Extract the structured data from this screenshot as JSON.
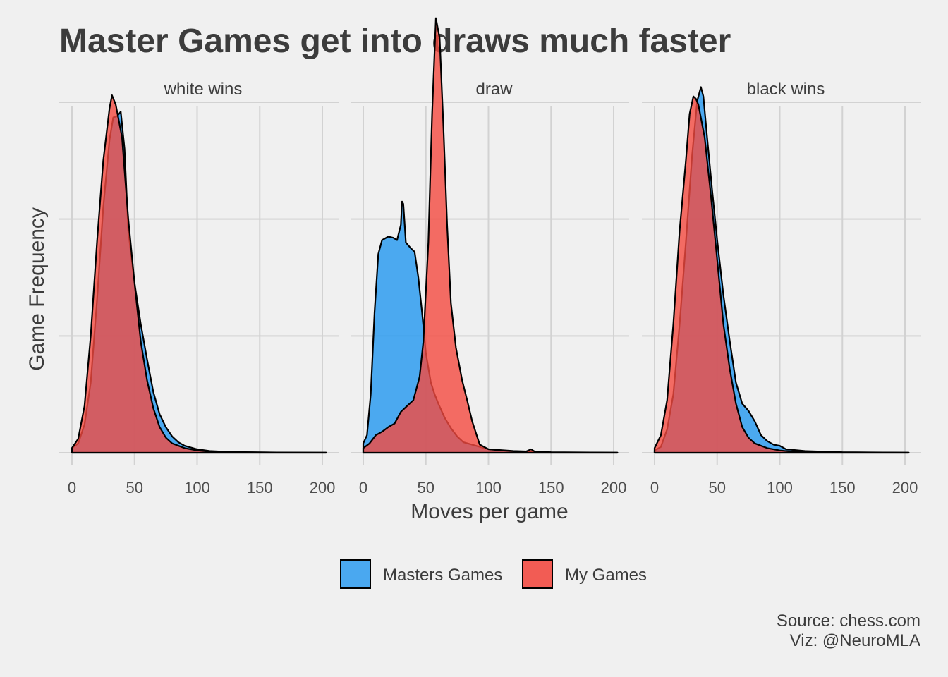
{
  "chart_data": {
    "type": "area",
    "title": "Master Games get into draws much faster",
    "xlabel": "Moves per game",
    "ylabel": "Game Frequency",
    "xlim": [
      0,
      200
    ],
    "ylim": [
      0,
      0.03
    ],
    "x_ticks": [
      "0",
      "50",
      "100",
      "150",
      "200"
    ],
    "legend": [
      {
        "name": "Masters Games",
        "color": "#4aa8f0"
      },
      {
        "name": "My Games",
        "color": "#f25c54"
      }
    ],
    "caption": [
      "Source: chess.com",
      "Viz: @NeuroMLA"
    ],
    "facets": [
      {
        "label": "white wins",
        "series": [
          {
            "name": "Masters Games",
            "points": [
              [
                0,
                0.0004
              ],
              [
                5,
                0.0008
              ],
              [
                10,
                0.0024
              ],
              [
                15,
                0.006
              ],
              [
                20,
                0.013
              ],
              [
                25,
                0.021
              ],
              [
                30,
                0.0268
              ],
              [
                33,
                0.0287
              ],
              [
                36,
                0.0288
              ],
              [
                39,
                0.0292
              ],
              [
                42,
                0.026
              ],
              [
                45,
                0.019
              ],
              [
                50,
                0.0145
              ],
              [
                55,
                0.011
              ],
              [
                60,
                0.008
              ],
              [
                65,
                0.0052
              ],
              [
                70,
                0.0033
              ],
              [
                75,
                0.0022
              ],
              [
                80,
                0.0014
              ],
              [
                85,
                0.0009
              ],
              [
                90,
                0.0006
              ],
              [
                100,
                0.0003
              ],
              [
                110,
                0.00015
              ],
              [
                120,
                0.0001
              ],
              [
                140,
                5e-05
              ],
              [
                170,
                2e-05
              ],
              [
                203,
                1e-05
              ]
            ]
          },
          {
            "name": "My Games",
            "points": [
              [
                0,
                0.0004
              ],
              [
                5,
                0.0012
              ],
              [
                10,
                0.004
              ],
              [
                15,
                0.01
              ],
              [
                20,
                0.018
              ],
              [
                25,
                0.025
              ],
              [
                30,
                0.0295
              ],
              [
                32,
                0.0306
              ],
              [
                35,
                0.0298
              ],
              [
                40,
                0.027
              ],
              [
                45,
                0.02
              ],
              [
                50,
                0.0145
              ],
              [
                55,
                0.0095
              ],
              [
                60,
                0.0062
              ],
              [
                65,
                0.0038
              ],
              [
                70,
                0.0022
              ],
              [
                75,
                0.0013
              ],
              [
                80,
                0.0008
              ],
              [
                90,
                0.0004
              ],
              [
                100,
                0.0002
              ],
              [
                110,
                0.0001
              ],
              [
                125,
                8e-05
              ],
              [
                150,
                3e-05
              ],
              [
                203,
                1e-05
              ]
            ]
          }
        ]
      },
      {
        "label": "draw",
        "series": [
          {
            "name": "Masters Games",
            "points": [
              [
                0,
                0.0008
              ],
              [
                3,
                0.0015
              ],
              [
                6,
                0.005
              ],
              [
                9,
                0.012
              ],
              [
                12,
                0.017
              ],
              [
                15,
                0.0182
              ],
              [
                20,
                0.0185
              ],
              [
                24,
                0.0184
              ],
              [
                27,
                0.0182
              ],
              [
                30,
                0.0195
              ],
              [
                31,
                0.0215
              ],
              [
                32,
                0.0213
              ],
              [
                34,
                0.018
              ],
              [
                38,
                0.0175
              ],
              [
                41,
                0.0172
              ],
              [
                44,
                0.015
              ],
              [
                47,
                0.012
              ],
              [
                50,
                0.0085
              ],
              [
                54,
                0.006
              ],
              [
                57,
                0.005
              ],
              [
                60,
                0.0042
              ],
              [
                65,
                0.003
              ],
              [
                70,
                0.0021
              ],
              [
                75,
                0.0014
              ],
              [
                80,
                0.0009
              ],
              [
                90,
                0.0006
              ],
              [
                100,
                0.0003
              ],
              [
                120,
                0.00015
              ],
              [
                150,
                5e-05
              ],
              [
                203,
                1e-05
              ]
            ]
          },
          {
            "name": "My Games",
            "points": [
              [
                0,
                0.0004
              ],
              [
                5,
                0.0008
              ],
              [
                10,
                0.0015
              ],
              [
                15,
                0.0018
              ],
              [
                20,
                0.0022
              ],
              [
                25,
                0.0025
              ],
              [
                30,
                0.0035
              ],
              [
                35,
                0.004
              ],
              [
                40,
                0.0045
              ],
              [
                45,
                0.0065
              ],
              [
                48,
                0.0095
              ],
              [
                52,
                0.018
              ],
              [
                55,
                0.029
              ],
              [
                58,
                0.0372
              ],
              [
                61,
                0.0355
              ],
              [
                64,
                0.028
              ],
              [
                67,
                0.0195
              ],
              [
                70,
                0.0128
              ],
              [
                74,
                0.009
              ],
              [
                79,
                0.0062
              ],
              [
                83,
                0.0045
              ],
              [
                87,
                0.0027
              ],
              [
                93,
                0.0007
              ],
              [
                100,
                0.0003
              ],
              [
                110,
                0.0002
              ],
              [
                125,
                0.0001
              ],
              [
                130,
                0.0001
              ],
              [
                134,
                0.0003
              ],
              [
                137,
                0.0001
              ],
              [
                150,
                3e-05
              ],
              [
                203,
                1e-05
              ]
            ]
          }
        ]
      },
      {
        "label": "black wins",
        "series": [
          {
            "name": "Masters Games",
            "points": [
              [
                0,
                0.0002
              ],
              [
                5,
                0.0005
              ],
              [
                10,
                0.002
              ],
              [
                15,
                0.005
              ],
              [
                20,
                0.011
              ],
              [
                25,
                0.018
              ],
              [
                30,
                0.0255
              ],
              [
                34,
                0.0301
              ],
              [
                37,
                0.0313
              ],
              [
                39,
                0.0305
              ],
              [
                42,
                0.027
              ],
              [
                46,
                0.0225
              ],
              [
                50,
                0.0182
              ],
              [
                55,
                0.0135
              ],
              [
                60,
                0.0096
              ],
              [
                65,
                0.006
              ],
              [
                70,
                0.0042
              ],
              [
                75,
                0.0036
              ],
              [
                80,
                0.0027
              ],
              [
                85,
                0.0015
              ],
              [
                90,
                0.001
              ],
              [
                95,
                0.0007
              ],
              [
                100,
                0.0006
              ],
              [
                105,
                0.0003
              ],
              [
                120,
                0.00015
              ],
              [
                150,
                5e-05
              ],
              [
                203,
                1e-05
              ]
            ]
          },
          {
            "name": "My Games",
            "points": [
              [
                0,
                0.0004
              ],
              [
                5,
                0.0015
              ],
              [
                10,
                0.0045
              ],
              [
                15,
                0.011
              ],
              [
                20,
                0.019
              ],
              [
                25,
                0.025
              ],
              [
                28,
                0.029
              ],
              [
                31,
                0.0305
              ],
              [
                33,
                0.0303
              ],
              [
                35,
                0.0298
              ],
              [
                40,
                0.027
              ],
              [
                45,
                0.022
              ],
              [
                50,
                0.0165
              ],
              [
                55,
                0.011
              ],
              [
                60,
                0.0072
              ],
              [
                65,
                0.0042
              ],
              [
                70,
                0.0022
              ],
              [
                75,
                0.0013
              ],
              [
                80,
                0.0008
              ],
              [
                90,
                0.0004
              ],
              [
                100,
                0.0002
              ],
              [
                110,
                0.0001
              ],
              [
                125,
                6e-05
              ],
              [
                150,
                3e-05
              ],
              [
                203,
                1e-05
              ]
            ]
          }
        ]
      }
    ]
  }
}
